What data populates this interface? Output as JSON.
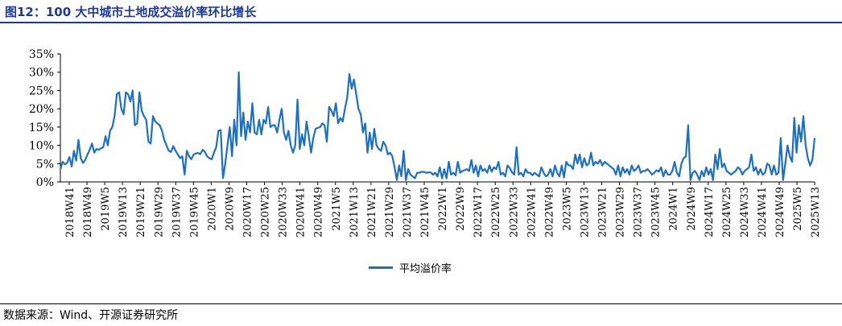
{
  "header": {
    "title": "图12：100 大中城市土地成交溢价率环比增长"
  },
  "footer": {
    "source": "数据来源：Wind、开源证券研究所"
  },
  "colors": {
    "line": "#1f6fbf",
    "title": "#1f3a93",
    "axis": "#000000"
  },
  "chart_data": {
    "type": "line",
    "title": "",
    "xlabel": "",
    "ylabel": "",
    "ylim": [
      0,
      35
    ],
    "yticks": [
      "0%",
      "5%",
      "10%",
      "15%",
      "20%",
      "25%",
      "30%",
      "35%"
    ],
    "grid": false,
    "legend_position": "bottom",
    "x_tick_labels": [
      "2018W41",
      "2018W49",
      "2019W5",
      "2019W13",
      "2019W21",
      "2019W29",
      "2019W37",
      "2019W45",
      "2020W1",
      "2020W9",
      "2020W17",
      "2020W25",
      "2020W33",
      "2020W41",
      "2020W49",
      "2021W5",
      "2021W13",
      "2021W21",
      "2021W29",
      "2021W37",
      "2021W45",
      "2022W1",
      "2022W9",
      "2022W17",
      "2022W25",
      "2022W33",
      "2022W41",
      "2022W49",
      "2023W5",
      "2023W13",
      "2023W21",
      "2023W29",
      "2023W37",
      "2023W45",
      "2024W1",
      "2024W9",
      "2024W17",
      "2024W25",
      "2024W33",
      "2024W41",
      "2024W49",
      "2025W5",
      "2025W13"
    ],
    "series": [
      {
        "name": "平均溢价率",
        "values": [
          3.5,
          5.5,
          4.8,
          5.2,
          6.8,
          4.2,
          8.5,
          5.8,
          11.5,
          6.5,
          5.2,
          6.0,
          7.5,
          8.8,
          10.5,
          8.0,
          9.0,
          8.8,
          9.2,
          9.5,
          12.5,
          10.0,
          14.0,
          15.0,
          18.0,
          24.0,
          24.5,
          20.0,
          18.5,
          24.5,
          24.0,
          22.0,
          25.0,
          15.5,
          16.0,
          24.5,
          19.5,
          18.0,
          17.0,
          11.0,
          10.5,
          18.0,
          16.5,
          16.0,
          15.5,
          14.0,
          11.5,
          10.0,
          8.5,
          8.2,
          9.8,
          8.5,
          7.5,
          6.5,
          7.0,
          2.0,
          8.5,
          7.0,
          6.2,
          7.5,
          7.8,
          7.9,
          7.6,
          8.8,
          8.2,
          7.0,
          6.5,
          6.2,
          8.0,
          9.5,
          14.0,
          14.2,
          1.0,
          5.0,
          10.0,
          15.0,
          7.0,
          17.0,
          10.0,
          30.0,
          12.5,
          19.0,
          11.5,
          16.5,
          13.5,
          21.5,
          13.5,
          13.0,
          17.0,
          13.0,
          17.0,
          16.0,
          20.5,
          15.0,
          15.5,
          15.5,
          13.5,
          17.0,
          20.0,
          13.5,
          11.5,
          14.0,
          10.0,
          8.0,
          10.0,
          22.5,
          9.0,
          13.0,
          10.0,
          16.5,
          12.5,
          8.0,
          12.0,
          14.5,
          14.8,
          15.0,
          16.0,
          15.5,
          11.0,
          20.5,
          19.5,
          18.0,
          21.5,
          16.0,
          17.5,
          16.5,
          20.0,
          23.0,
          29.5,
          25.5,
          28.0,
          24.0,
          20.0,
          18.5,
          13.5,
          16.0,
          8.0,
          13.5,
          9.0,
          14.5,
          10.0,
          9.0,
          8.5,
          11.0,
          10.0,
          7.5,
          8.0,
          7.0,
          4.0,
          0.5,
          4.5,
          1.5,
          8.5,
          0.5,
          3.5,
          2.0,
          1.5,
          1.0,
          2.5,
          2.5,
          2.8,
          2.7,
          2.5,
          2.6,
          2.6,
          2.0,
          2.5,
          1.5,
          4.0,
          1.0,
          3.5,
          1.0,
          5.5,
          2.0,
          2.5,
          1.8,
          5.5,
          2.5,
          3.0,
          3.2,
          3.5,
          3.0,
          6.0,
          2.5,
          4.5,
          1.5,
          4.5,
          3.0,
          3.5,
          2.5,
          4.5,
          2.8,
          4.0,
          3.5,
          5.5,
          2.0,
          2.5,
          1.5,
          4.5,
          3.8,
          2.6,
          2.0,
          9.5,
          2.0,
          2.5,
          1.5,
          3.5,
          2.5,
          2.5,
          1.8,
          2.5,
          2.0,
          1.5,
          4.0,
          2.5,
          1.5,
          2.0,
          3.5,
          1.5,
          4.5,
          2.5,
          1.5,
          4.5,
          1.2,
          5.5,
          4.5,
          4.5,
          3.5,
          7.5,
          5.0,
          7.5,
          4.0,
          6.5,
          4.5,
          5.0,
          8.0,
          4.5,
          5.5,
          5.0,
          6.0,
          4.5,
          5.5,
          5.0,
          4.5,
          4.0,
          3.5,
          2.0,
          4.5,
          1.5,
          4.0,
          2.5,
          3.5,
          2.0,
          4.5,
          3.0,
          3.5,
          4.5,
          2.5,
          3.0,
          3.0,
          3.5,
          2.8,
          2.0,
          2.5,
          3.2,
          2.8,
          4.0,
          1.5,
          3.2,
          2.0,
          2.0,
          3.0,
          5.5,
          2.5,
          1.5,
          5.0,
          6.5,
          7.0,
          15.5,
          0.5,
          2.5,
          3.0,
          2.0,
          0.5,
          3.0,
          1.5,
          4.0,
          2.0,
          3.5,
          0.5,
          7.5,
          3.5,
          9.0,
          4.0,
          5.0,
          3.0,
          2.5,
          2.0,
          2.5,
          3.0,
          4.0,
          3.5,
          2.0,
          3.0,
          3.5,
          4.0,
          7.5,
          3.0,
          4.0,
          2.0,
          3.5,
          2.0,
          2.5,
          5.0,
          4.5,
          2.0,
          4.5,
          2.0,
          2.5,
          12.0,
          0.5,
          5.0,
          10.0,
          7.0,
          5.5,
          17.5,
          8.0,
          15.5,
          11.0,
          18.0,
          10.0,
          6.5,
          4.5,
          6.0,
          12.0
        ]
      }
    ]
  }
}
